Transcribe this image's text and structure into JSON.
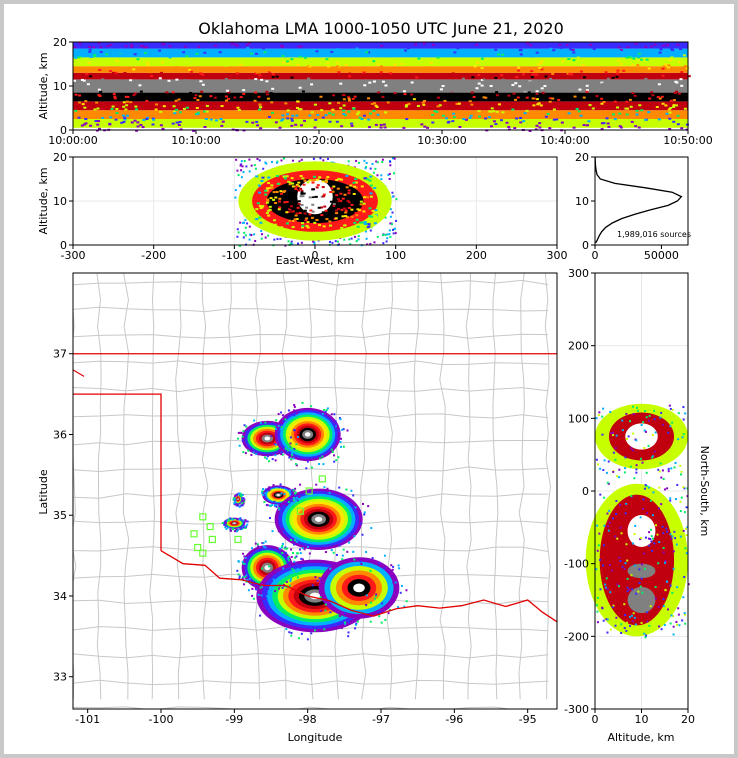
{
  "chart_data": {
    "title": "Oklahoma LMA 1000-1050 UTC June 21, 2020",
    "colors": {
      "state_border": "#e00000",
      "county_lines": "#c8c8c8",
      "stations": "#66ff33"
    },
    "colormap": [
      "#8a00c0",
      "#3a2bff",
      "#00b0ff",
      "#00ee66",
      "#c8ff00",
      "#ffe600",
      "#ff8a00",
      "#ff1a1a",
      "#c0000e",
      "#000000",
      "#808080",
      "#ffffff"
    ],
    "panels": [
      {
        "id": "time_altitude",
        "type": "heatmap",
        "ylabel": "Altitude, km",
        "xlim": [
          "10:00:00",
          "10:50:00"
        ],
        "ylim": [
          0,
          20
        ],
        "x_ticks": [
          "10:00:00",
          "10:10:00",
          "10:20:00",
          "10:30:00",
          "10:40:00",
          "10:50:00"
        ],
        "y_ticks": [
          0,
          10,
          20
        ],
        "bands": [
          {
            "alt": [
              0.5,
              2.5
            ],
            "level": 4
          },
          {
            "alt": [
              2.5,
              4.5
            ],
            "level": 6
          },
          {
            "alt": [
              4.5,
              6.5
            ],
            "level": 8
          },
          {
            "alt": [
              6.5,
              8.5
            ],
            "level": 9
          },
          {
            "alt": [
              8.5,
              11.5
            ],
            "level": 10
          },
          {
            "alt": [
              11.5,
              13.0
            ],
            "level": 8
          },
          {
            "alt": [
              13.0,
              14.5
            ],
            "level": 6
          },
          {
            "alt": [
              14.5,
              16.5
            ],
            "level": 4
          },
          {
            "alt": [
              16.5,
              18.5
            ],
            "level": 2
          },
          {
            "alt": [
              18.5,
              20
            ],
            "level": 1
          }
        ]
      },
      {
        "id": "ew_altitude",
        "type": "heatmap",
        "xlabel": "East-West, km",
        "ylabel": "Altitude, km",
        "xlim": [
          -300,
          300
        ],
        "ylim": [
          0,
          20
        ],
        "x_ticks": [
          -300,
          -200,
          -100,
          0,
          100,
          200,
          300
        ],
        "y_ticks": [
          0,
          10,
          20
        ],
        "blobs": [
          {
            "x": 0,
            "y": 10,
            "rx": 95,
            "ry": 9,
            "level": 4
          },
          {
            "x": 0,
            "y": 10,
            "rx": 78,
            "ry": 7,
            "level": 7
          },
          {
            "x": 0,
            "y": 10,
            "rx": 60,
            "ry": 5,
            "level": 9
          },
          {
            "x": 0,
            "y": 11,
            "rx": 22,
            "ry": 4,
            "level": 11
          }
        ]
      },
      {
        "id": "altitude_histogram",
        "type": "line",
        "xlim": [
          0,
          70000
        ],
        "ylim": [
          0,
          20
        ],
        "x_ticks": [
          0,
          50000
        ],
        "y_ticks": [
          0,
          10,
          20
        ],
        "annotation": "1,989,016 sources",
        "profile": [
          [
            0.5,
            500
          ],
          [
            1,
            1500
          ],
          [
            2,
            3000
          ],
          [
            3,
            5000
          ],
          [
            4,
            8000
          ],
          [
            5,
            13000
          ],
          [
            6,
            20000
          ],
          [
            7,
            30000
          ],
          [
            8,
            42000
          ],
          [
            9,
            55000
          ],
          [
            10,
            62000
          ],
          [
            11,
            65000
          ],
          [
            12,
            58000
          ],
          [
            13,
            38000
          ],
          [
            14,
            15000
          ],
          [
            15,
            4000
          ],
          [
            16,
            1500
          ],
          [
            17,
            800
          ],
          [
            18,
            400
          ],
          [
            19,
            200
          ],
          [
            20,
            100
          ]
        ]
      },
      {
        "id": "plan_view",
        "type": "heatmap",
        "xlabel": "Longitude",
        "ylabel": "Latitude",
        "xlim": [
          -101.2,
          -94.6
        ],
        "ylim": [
          32.6,
          38.0
        ],
        "x_ticks": [
          -101,
          -100,
          -99,
          -98,
          -97,
          -96,
          -95
        ],
        "y_ticks": [
          33,
          34,
          35,
          36,
          37
        ],
        "blobs": [
          {
            "lon": -98.55,
            "lat": 35.95,
            "rlon": 0.35,
            "rlat": 0.22,
            "peak": 8
          },
          {
            "lon": -98.0,
            "lat": 36.0,
            "rlon": 0.45,
            "rlat": 0.33,
            "peak": 11
          },
          {
            "lon": -98.4,
            "lat": 35.25,
            "rlon": 0.22,
            "rlat": 0.12,
            "peak": 9
          },
          {
            "lon": -97.85,
            "lat": 34.95,
            "rlon": 0.6,
            "rlat": 0.38,
            "peak": 11
          },
          {
            "lon": -98.55,
            "lat": 34.35,
            "rlon": 0.35,
            "rlat": 0.28,
            "peak": 8
          },
          {
            "lon": -97.9,
            "lat": 34.0,
            "rlon": 0.8,
            "rlat": 0.45,
            "peak": 10
          },
          {
            "lon": -97.3,
            "lat": 34.1,
            "rlon": 0.55,
            "rlat": 0.38,
            "peak": 6
          },
          {
            "lon": -99.0,
            "lat": 34.9,
            "rlon": 0.15,
            "rlat": 0.07,
            "peak": 8
          },
          {
            "lon": -98.95,
            "lat": 35.2,
            "rlon": 0.06,
            "rlat": 0.07,
            "peak": 8
          }
        ],
        "stations": [
          [
            -99.43,
            34.98
          ],
          [
            -99.33,
            34.86
          ],
          [
            -99.55,
            34.77
          ],
          [
            -99.3,
            34.7
          ],
          [
            -99.5,
            34.6
          ],
          [
            -99.43,
            34.53
          ],
          [
            -98.95,
            34.7
          ],
          [
            -97.98,
            35.3
          ],
          [
            -97.8,
            35.45
          ],
          [
            -98.1,
            35.05
          ]
        ]
      },
      {
        "id": "altitude_ns",
        "type": "heatmap",
        "xlabel": "Altitude, km",
        "ylabel": "North-South, km",
        "xlim": [
          0,
          20
        ],
        "ylim": [
          -300,
          300
        ],
        "x_ticks": [
          0,
          10,
          20
        ],
        "y_ticks": [
          -300,
          -200,
          -100,
          0,
          100,
          200,
          300
        ],
        "blobs": [
          {
            "x": 10,
            "y": 75,
            "rx": 10,
            "ry": 45,
            "level": 4
          },
          {
            "x": 10,
            "y": 75,
            "rx": 7,
            "ry": 33,
            "level": 8
          },
          {
            "x": 10,
            "y": 75,
            "rx": 3.5,
            "ry": 18,
            "level": 11
          },
          {
            "x": 9,
            "y": -95,
            "rx": 11,
            "ry": 105,
            "level": 4
          },
          {
            "x": 9,
            "y": -95,
            "rx": 8,
            "ry": 90,
            "level": 8
          },
          {
            "x": 10,
            "y": -55,
            "rx": 3,
            "ry": 22,
            "level": 11
          },
          {
            "x": 10,
            "y": -150,
            "rx": 3,
            "ry": 18,
            "level": 10
          },
          {
            "x": 10,
            "y": -110,
            "rx": 3,
            "ry": 10,
            "level": 10
          }
        ]
      }
    ]
  }
}
